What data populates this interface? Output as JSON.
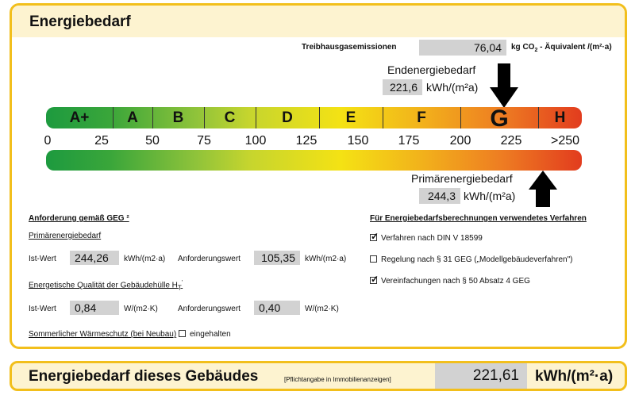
{
  "title": "Energiebedarf",
  "emissions": {
    "label": "Treibhausgasemissionen",
    "value": "76,04",
    "unit_pre": "kg CO",
    "unit_sub": "2",
    "unit_post": " - Äquivalent  /(m²·a)"
  },
  "end_energy": {
    "label": "Endenergiebedarf",
    "value": "221,6",
    "unit": "kWh/(m²a)"
  },
  "primary_energy": {
    "label": "Primärenergiebedarf",
    "value": "244,3",
    "unit": "kWh/(m²a)"
  },
  "classes": [
    "A+",
    "A",
    "B",
    "C",
    "D",
    "E",
    "F",
    "G",
    "H"
  ],
  "scale_ticks": [
    "0",
    "25",
    "50",
    "75",
    "100",
    "125",
    "150",
    "175",
    "200",
    "225",
    ">250"
  ],
  "marker_values": {
    "end_energy_kwh": 221.6,
    "primary_energy_kwh": 244.3
  },
  "requirements": {
    "heading": "Anforderung gemäß GEG ²",
    "primary_heading": "Primärenergiebedarf",
    "ist_label": "Ist-Wert",
    "primary_ist": "244,26",
    "primary_unit": "kWh/(m2·a)",
    "anf_label": "Anforderungswert",
    "primary_anf": "105,35",
    "primary_anf_unit": "kWh/(m2·a)",
    "quality_heading": "Energetische Qualität der Gebäudehülle H",
    "quality_sub": "T",
    "quality_sup": "'",
    "quality_ist": "0,84",
    "quality_unit": "W/(m2·K)",
    "quality_anf": "0,40",
    "quality_anf_unit": "W/(m2·K)",
    "summer_label": "Sommerlicher Wärmeschutz (bei Neubau)",
    "summer_check": "eingehalten"
  },
  "procedures": {
    "heading": "Für Energiebedarfsberechnungen verwendetes Verfahren",
    "items": [
      {
        "label": "Verfahren nach DIN V 18599",
        "checked": true
      },
      {
        "label": "Regelung nach § 31 GEG („Modellgebäudeverfahren\")",
        "checked": false
      },
      {
        "label": "Vereinfachungen nach § 50 Absatz 4 GEG",
        "checked": true
      }
    ]
  },
  "footer": {
    "title": "Energiebedarf dieses Gebäudes",
    "note": "[Pflichtangabe in Immobilienanzeigen]",
    "value": "221,61",
    "unit": "kWh/(m²·a)"
  }
}
